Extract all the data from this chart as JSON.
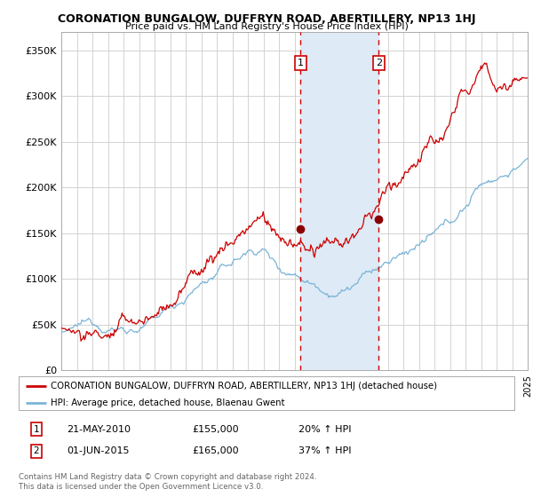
{
  "title": "CORONATION BUNGALOW, DUFFRYN ROAD, ABERTILLERY, NP13 1HJ",
  "subtitle": "Price paid vs. HM Land Registry's House Price Index (HPI)",
  "legend_line1": "CORONATION BUNGALOW, DUFFRYN ROAD, ABERTILLERY, NP13 1HJ (detached house)",
  "legend_line2": "HPI: Average price, detached house, Blaenau Gwent",
  "sale1_date": "21-MAY-2010",
  "sale1_price": 155000,
  "sale1_pct": "20%",
  "sale2_date": "01-JUN-2015",
  "sale2_price": 165000,
  "sale2_pct": "37%",
  "footnote": "Contains HM Land Registry data © Crown copyright and database right 2024.\nThis data is licensed under the Open Government Licence v3.0.",
  "hpi_color": "#7ab4d8",
  "price_color": "#cc0000",
  "dot_color": "#8b0000",
  "vline_color": "#cc0000",
  "shade_color": "#deeaf5",
  "ylim": [
    0,
    370000
  ],
  "yticks": [
    0,
    50000,
    100000,
    150000,
    200000,
    250000,
    300000,
    350000
  ],
  "start_year": 1995,
  "end_year": 2025,
  "sale1_year": 2010.38,
  "sale2_year": 2015.42,
  "background_color": "#ffffff",
  "grid_color": "#cccccc"
}
